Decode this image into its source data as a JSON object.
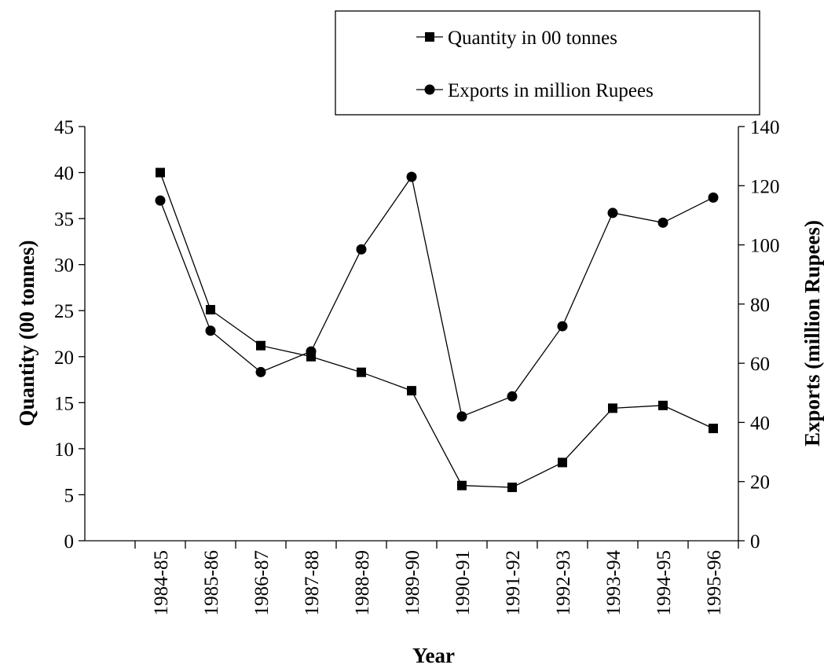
{
  "chart_data": {
    "type": "line",
    "xlabel": "Year",
    "ylabel_left": "Quantity (00 tonnes)",
    "ylabel_right": "Exports (million Rupees)",
    "categories": [
      "1984-85",
      "1985-86",
      "1986-87",
      "1987-88",
      "1988-89",
      "1989-90",
      "1990-91",
      "1991-92",
      "1992-93",
      "1993-94",
      "1994-95",
      "1995-96"
    ],
    "ylim_left": [
      0,
      45
    ],
    "yticks_left": [
      0,
      5,
      10,
      15,
      20,
      25,
      30,
      35,
      40,
      45
    ],
    "ylim_right": [
      0,
      140
    ],
    "yticks_right": [
      0,
      20,
      40,
      60,
      80,
      100,
      120,
      140
    ],
    "legend_position": "top-right",
    "series": [
      {
        "name": "Quantity in 00 tonnes",
        "axis": "left",
        "marker": "square",
        "values": [
          40.0,
          25.1,
          21.2,
          20.0,
          18.3,
          16.3,
          6.0,
          5.8,
          8.5,
          14.4,
          14.7,
          12.2
        ]
      },
      {
        "name": "Exports in million Rupees",
        "axis": "right",
        "marker": "circle",
        "values": [
          115.0,
          71.0,
          57.0,
          64.0,
          98.5,
          123.0,
          42.0,
          48.8,
          72.5,
          110.8,
          107.5,
          116.0
        ]
      }
    ]
  }
}
